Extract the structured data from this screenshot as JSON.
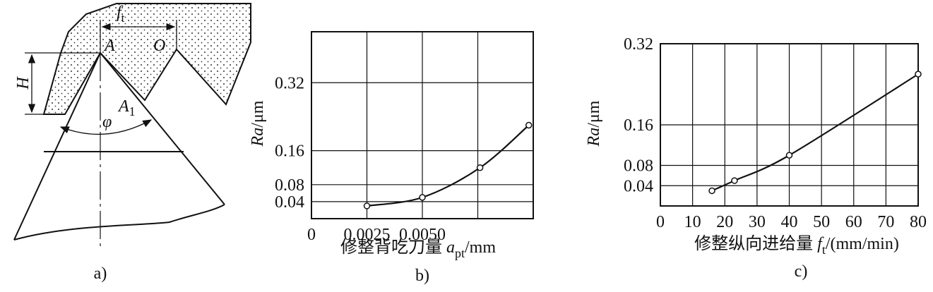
{
  "diagram": {
    "labels": {
      "ft": [
        "f",
        "t"
      ],
      "A": "A",
      "O": "O",
      "H": "H",
      "phi": "φ",
      "A1": [
        "A",
        "1"
      ]
    },
    "caption": "a)"
  },
  "chart_data": [
    {
      "type": "line",
      "caption": "b)",
      "x_label": [
        "修整背吃刀量 ",
        "a",
        "pt",
        "/mm"
      ],
      "y_label": [
        "Ra",
        "/μm"
      ],
      "x": [
        0.0025,
        0.005,
        0.0076,
        0.0098
      ],
      "values": [
        0.03,
        0.05,
        0.12,
        0.22
      ],
      "xlim": [
        0,
        0.01
      ],
      "ylim": [
        0,
        0.44
      ],
      "xticks": [
        0,
        0.0025,
        {
          "value": 0.005,
          "label": "0.0050"
        },
        {
          "value": 0.0075,
          "label": null
        }
      ],
      "yticks": [
        0.04,
        0.08,
        0.16,
        0.32
      ],
      "grid": true,
      "color": "#111111"
    },
    {
      "type": "line",
      "caption": "c)",
      "x_label": [
        "修整纵向进给量 ",
        "f",
        "t",
        "/(mm/min)"
      ],
      "y_label": [
        "Ra",
        "/μm"
      ],
      "x": [
        16,
        23,
        40,
        80
      ],
      "values": [
        0.03,
        0.05,
        0.1,
        0.26
      ],
      "xlim": [
        0,
        80
      ],
      "ylim": [
        0,
        0.32
      ],
      "xticks": [
        0,
        10,
        20,
        30,
        40,
        50,
        60,
        70,
        80
      ],
      "yticks": [
        0.04,
        0.08,
        0.16,
        0.32
      ],
      "grid": true,
      "color": "#111111"
    }
  ]
}
